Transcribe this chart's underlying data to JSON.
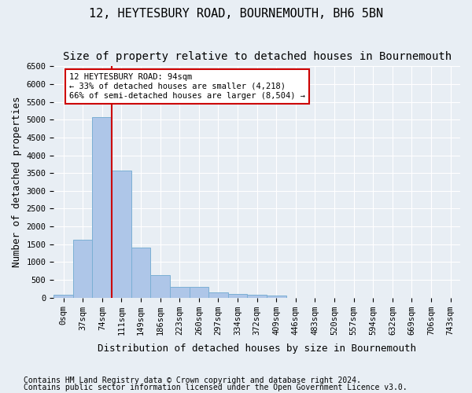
{
  "title1": "12, HEYTESBURY ROAD, BOURNEMOUTH, BH6 5BN",
  "title2": "Size of property relative to detached houses in Bournemouth",
  "xlabel": "Distribution of detached houses by size in Bournemouth",
  "ylabel": "Number of detached properties",
  "bar_values": [
    75,
    1625,
    5075,
    3575,
    1400,
    625,
    300,
    300,
    150,
    100,
    75,
    50,
    0,
    0,
    0,
    0,
    0,
    0,
    0,
    0,
    0
  ],
  "bar_labels": [
    "0sqm",
    "37sqm",
    "74sqm",
    "111sqm",
    "149sqm",
    "186sqm",
    "223sqm",
    "260sqm",
    "297sqm",
    "334sqm",
    "372sqm",
    "409sqm",
    "446sqm",
    "483sqm",
    "520sqm",
    "557sqm",
    "594sqm",
    "632sqm",
    "669sqm",
    "706sqm",
    "743sqm"
  ],
  "bar_color": "#aec6e8",
  "bar_edge_color": "#7bafd4",
  "bg_color": "#e8eef4",
  "grid_color": "#ffffff",
  "vline_x": 2.5,
  "vline_color": "#cc0000",
  "annotation_text": "12 HEYTESBURY ROAD: 94sqm\n← 33% of detached houses are smaller (4,218)\n66% of semi-detached houses are larger (8,504) →",
  "annotation_box_color": "#ffffff",
  "annotation_box_edge": "#cc0000",
  "ylim": [
    0,
    6500
  ],
  "yticks": [
    0,
    500,
    1000,
    1500,
    2000,
    2500,
    3000,
    3500,
    4000,
    4500,
    5000,
    5500,
    6000,
    6500
  ],
  "footnote1": "Contains HM Land Registry data © Crown copyright and database right 2024.",
  "footnote2": "Contains public sector information licensed under the Open Government Licence v3.0.",
  "title1_fontsize": 11,
  "title2_fontsize": 10,
  "xlabel_fontsize": 9,
  "ylabel_fontsize": 9,
  "tick_fontsize": 7.5,
  "footnote_fontsize": 7
}
